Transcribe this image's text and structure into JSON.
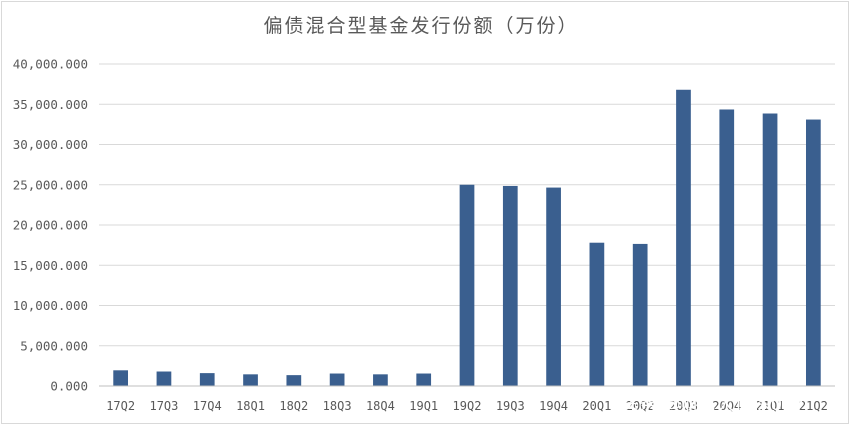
{
  "chart_data": {
    "type": "bar",
    "title": "偏债混合型基金发行份额（万份）",
    "xlabel": "",
    "ylabel": "",
    "categories": [
      "17Q2",
      "17Q3",
      "17Q4",
      "18Q1",
      "18Q2",
      "18Q3",
      "18Q4",
      "19Q1",
      "19Q2",
      "19Q3",
      "19Q4",
      "20Q1",
      "20Q2",
      "20Q3",
      "20Q4",
      "21Q1",
      "21Q2"
    ],
    "values": [
      1950,
      1800,
      1600,
      1450,
      1350,
      1550,
      1450,
      1550,
      25000,
      24850,
      24650,
      17800,
      17650,
      36800,
      34350,
      33850,
      33100
    ],
    "ylim": [
      0,
      40000
    ],
    "yticks": [
      "0.000",
      "5,000.000",
      "10,000.000",
      "15,000.000",
      "20,000.000",
      "25,000.000",
      "30,000.000",
      "35,000.000",
      "40,000.000"
    ],
    "bar_color": "#3a5f8f",
    "grid": true,
    "legend": "none"
  },
  "watermark": {
    "text": "头条 @财富大侦探007",
    "color": "#ffffff"
  }
}
